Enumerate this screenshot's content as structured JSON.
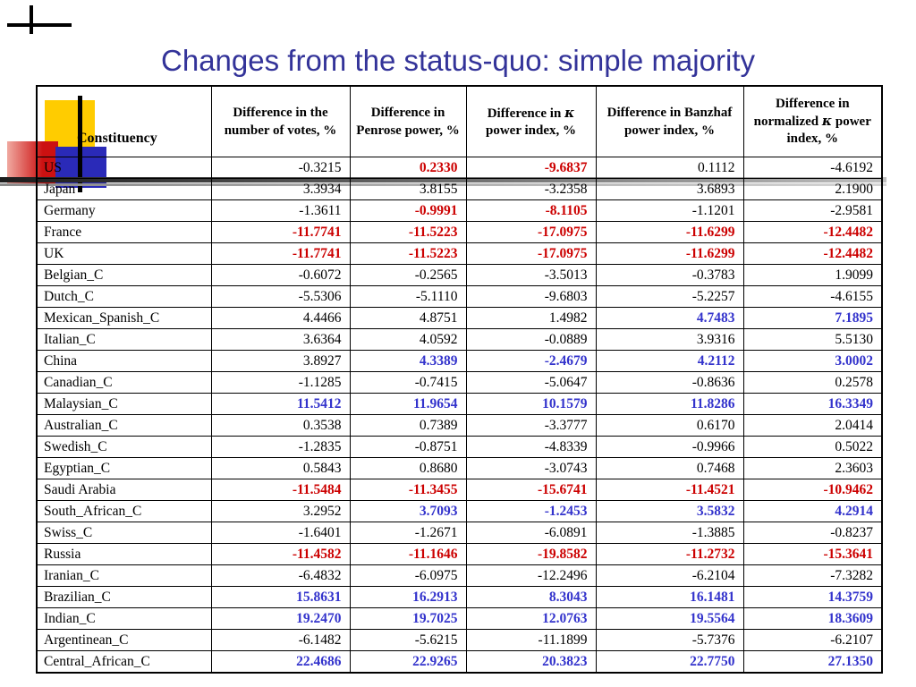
{
  "slide": {
    "title": "Changes from the status-quo: simple majority"
  },
  "colors": {
    "title_blue": "#333399",
    "negative_red": "#cc0000",
    "positive_blue": "#3333cc",
    "decor_yellow": "#ffcc00",
    "decor_red": "#cc1111",
    "decor_blue": "#2a2ab8"
  },
  "table": {
    "columns": [
      {
        "pre": "Constituency",
        "k": "",
        "post": ""
      },
      {
        "pre": "Difference in the number of votes, %",
        "k": "",
        "post": ""
      },
      {
        "pre": "Difference in Penrose power, %",
        "k": "",
        "post": ""
      },
      {
        "pre": "Difference in ",
        "k": "κ",
        "post": " power index, %"
      },
      {
        "pre": "Difference in Banzhaf power index, %",
        "k": "",
        "post": ""
      },
      {
        "pre": "Difference in normalized ",
        "k": "κ",
        "post": " power index, %"
      }
    ],
    "rows": [
      {
        "name": "US",
        "values": [
          "-0.3215",
          "0.2330",
          "-9.6837",
          "0.1112",
          "-4.6192"
        ],
        "colors": [
          "k",
          "r",
          "r",
          "k",
          "k"
        ]
      },
      {
        "name": "Japan",
        "values": [
          "3.3934",
          "3.8155",
          "-3.2358",
          "3.6893",
          "2.1900"
        ],
        "colors": [
          "k",
          "k",
          "k",
          "k",
          "k"
        ]
      },
      {
        "name": "Germany",
        "values": [
          "-1.3611",
          "-0.9991",
          "-8.1105",
          "-1.1201",
          "-2.9581"
        ],
        "colors": [
          "k",
          "r",
          "r",
          "k",
          "k"
        ]
      },
      {
        "name": "France",
        "values": [
          "-11.7741",
          "-11.5223",
          "-17.0975",
          "-11.6299",
          "-12.4482"
        ],
        "colors": [
          "r",
          "r",
          "r",
          "r",
          "r"
        ]
      },
      {
        "name": "UK",
        "values": [
          "-11.7741",
          "-11.5223",
          "-17.0975",
          "-11.6299",
          "-12.4482"
        ],
        "colors": [
          "r",
          "r",
          "r",
          "r",
          "r"
        ]
      },
      {
        "name": "Belgian_C",
        "values": [
          "-0.6072",
          "-0.2565",
          "-3.5013",
          "-0.3783",
          "1.9099"
        ],
        "colors": [
          "k",
          "k",
          "k",
          "k",
          "k"
        ]
      },
      {
        "name": "Dutch_C",
        "values": [
          "-5.5306",
          "-5.1110",
          "-9.6803",
          "-5.2257",
          "-4.6155"
        ],
        "colors": [
          "k",
          "k",
          "k",
          "k",
          "k"
        ]
      },
      {
        "name": "Mexican_Spanish_C",
        "values": [
          "4.4466",
          "4.8751",
          "1.4982",
          "4.7483",
          "7.1895"
        ],
        "colors": [
          "k",
          "k",
          "k",
          "b",
          "b"
        ]
      },
      {
        "name": "Italian_C",
        "values": [
          "3.6364",
          "4.0592",
          "-0.0889",
          "3.9316",
          "5.5130"
        ],
        "colors": [
          "k",
          "k",
          "k",
          "k",
          "k"
        ]
      },
      {
        "name": "China",
        "values": [
          "3.8927",
          "4.3389",
          "-2.4679",
          "4.2112",
          "3.0002"
        ],
        "colors": [
          "k",
          "b",
          "b",
          "b",
          "b"
        ]
      },
      {
        "name": "Canadian_C",
        "values": [
          "-1.1285",
          "-0.7415",
          "-5.0647",
          "-0.8636",
          "0.2578"
        ],
        "colors": [
          "k",
          "k",
          "k",
          "k",
          "k"
        ]
      },
      {
        "name": "Malaysian_C",
        "values": [
          "11.5412",
          "11.9654",
          "10.1579",
          "11.8286",
          "16.3349"
        ],
        "colors": [
          "b",
          "b",
          "b",
          "b",
          "b"
        ]
      },
      {
        "name": "Australian_C",
        "values": [
          "0.3538",
          "0.7389",
          "-3.3777",
          "0.6170",
          "2.0414"
        ],
        "colors": [
          "k",
          "k",
          "k",
          "k",
          "k"
        ]
      },
      {
        "name": "Swedish_C",
        "values": [
          "-1.2835",
          "-0.8751",
          "-4.8339",
          "-0.9966",
          "0.5022"
        ],
        "colors": [
          "k",
          "k",
          "k",
          "k",
          "k"
        ]
      },
      {
        "name": "Egyptian_C",
        "values": [
          "0.5843",
          "0.8680",
          "-3.0743",
          "0.7468",
          "2.3603"
        ],
        "colors": [
          "k",
          "k",
          "k",
          "k",
          "k"
        ]
      },
      {
        "name": "Saudi Arabia",
        "values": [
          "-11.5484",
          "-11.3455",
          "-15.6741",
          "-11.4521",
          "-10.9462"
        ],
        "colors": [
          "r",
          "r",
          "r",
          "r",
          "r"
        ]
      },
      {
        "name": "South_African_C",
        "values": [
          "3.2952",
          "3.7093",
          "-1.2453",
          "3.5832",
          "4.2914"
        ],
        "colors": [
          "k",
          "b",
          "b",
          "b",
          "b"
        ]
      },
      {
        "name": "Swiss_C",
        "values": [
          "-1.6401",
          "-1.2671",
          "-6.0891",
          "-1.3885",
          "-0.8237"
        ],
        "colors": [
          "k",
          "k",
          "k",
          "k",
          "k"
        ]
      },
      {
        "name": "Russia",
        "values": [
          "-11.4582",
          "-11.1646",
          "-19.8582",
          "-11.2732",
          "-15.3641"
        ],
        "colors": [
          "r",
          "r",
          "r",
          "r",
          "r"
        ]
      },
      {
        "name": "Iranian_C",
        "values": [
          "-6.4832",
          "-6.0975",
          "-12.2496",
          "-6.2104",
          "-7.3282"
        ],
        "colors": [
          "k",
          "k",
          "k",
          "k",
          "k"
        ]
      },
      {
        "name": "Brazilian_C",
        "values": [
          "15.8631",
          "16.2913",
          "8.3043",
          "16.1481",
          "14.3759"
        ],
        "colors": [
          "b",
          "b",
          "b",
          "b",
          "b"
        ]
      },
      {
        "name": "Indian_C",
        "values": [
          "19.2470",
          "19.7025",
          "12.0763",
          "19.5564",
          "18.3609"
        ],
        "colors": [
          "b",
          "b",
          "b",
          "b",
          "b"
        ]
      },
      {
        "name": "Argentinean_C",
        "values": [
          "-6.1482",
          "-5.6215",
          "-11.1899",
          "-5.7376",
          "-6.2107"
        ],
        "colors": [
          "k",
          "k",
          "k",
          "k",
          "k"
        ]
      },
      {
        "name": "Central_African_C",
        "values": [
          "22.4686",
          "22.9265",
          "20.3823",
          "22.7750",
          "27.1350"
        ],
        "colors": [
          "b",
          "b",
          "b",
          "b",
          "b"
        ]
      }
    ]
  }
}
